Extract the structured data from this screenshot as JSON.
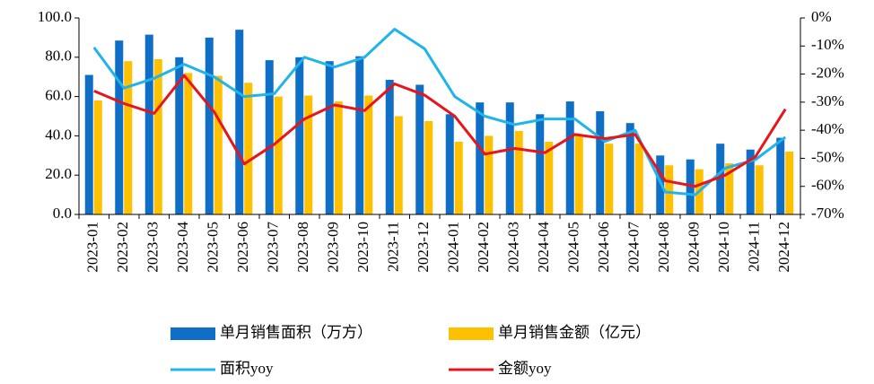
{
  "chart_data": {
    "type": "bar",
    "categories": [
      "2023-01",
      "2023-02",
      "2023-03",
      "2023-04",
      "2023-05",
      "2023-06",
      "2023-07",
      "2023-08",
      "2023-09",
      "2023-10",
      "2023-11",
      "2023-12",
      "2024-01",
      "2024-02",
      "2024-03",
      "2024-04",
      "2024-05",
      "2024-06",
      "2024-07",
      "2024-08",
      "2024-09",
      "2024-10",
      "2024-11",
      "2024-12"
    ],
    "series": [
      {
        "name": "单月销售面积（万方）",
        "color": "#0f6fc6",
        "values": [
          71,
          88.5,
          91.5,
          80,
          90,
          94,
          78.5,
          80,
          78,
          80.5,
          68.5,
          66,
          51,
          57,
          57,
          51,
          57.5,
          52.5,
          46.5,
          30,
          28,
          36,
          33,
          39
        ]
      },
      {
        "name": "单月销售金额（亿元）",
        "color": "#ffc000",
        "values": [
          58,
          78,
          79,
          72,
          70.5,
          67,
          60,
          60.5,
          57.5,
          60.5,
          50,
          47.5,
          37,
          40,
          42.5,
          37,
          40,
          36,
          36,
          25,
          23,
          26,
          25,
          32
        ]
      },
      {
        "name": "面积yoy",
        "type": "line",
        "axis": "y2",
        "color": "#1fb4ea",
        "values": [
          -10.5,
          -25,
          -21.5,
          -16.5,
          -21,
          -28,
          -27,
          -14,
          -17.5,
          -14,
          -4,
          -11,
          -28,
          -35,
          -38,
          -36,
          -36,
          -44,
          -40,
          -62,
          -63,
          -53.5,
          -50.5,
          -42.5
        ]
      },
      {
        "name": "金额yoy",
        "type": "line",
        "axis": "y2",
        "color": "#e8141c",
        "values": [
          -26,
          -30.5,
          -34,
          -20.5,
          -33.5,
          -52,
          -45,
          -36,
          -31,
          -33,
          -23.5,
          -27.5,
          -35,
          -48.5,
          -46.5,
          -48,
          -41.5,
          -43,
          -41.5,
          -58,
          -60,
          -56,
          -49.5,
          -32.5
        ]
      }
    ],
    "ylim": [
      0,
      100
    ],
    "yticks": [
      {
        "value": 0,
        "label": "0.0"
      },
      {
        "value": 20,
        "label": "20.0"
      },
      {
        "value": 40,
        "label": "40.0"
      },
      {
        "value": 60,
        "label": "60.0"
      },
      {
        "value": 80,
        "label": "80.0"
      },
      {
        "value": 100,
        "label": "100.0"
      }
    ],
    "y2lim": [
      -70,
      0
    ],
    "y2ticks": [
      {
        "value": -70,
        "label": "-70%"
      },
      {
        "value": -60,
        "label": "-60%"
      },
      {
        "value": -50,
        "label": "-50%"
      },
      {
        "value": -40,
        "label": "-40%"
      },
      {
        "value": -30,
        "label": "-30%"
      },
      {
        "value": -20,
        "label": "-20%"
      },
      {
        "value": -10,
        "label": "-10%"
      },
      {
        "value": 0,
        "label": "0%"
      }
    ],
    "grid": false,
    "legend": "bottom"
  }
}
